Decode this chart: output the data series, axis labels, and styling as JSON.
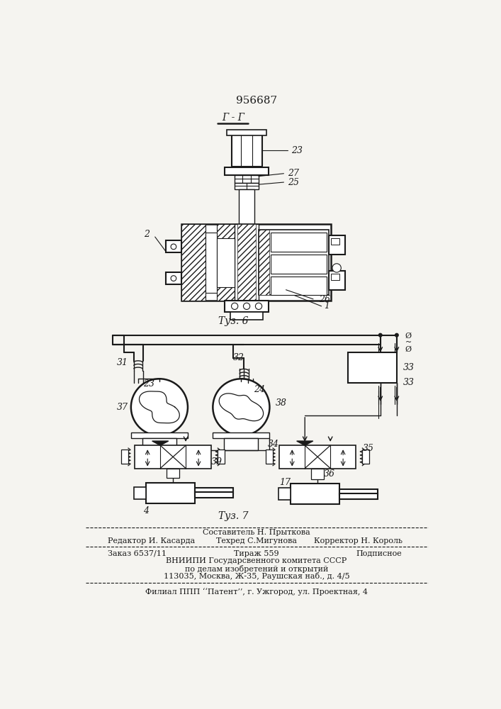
{
  "title": "956687",
  "fig6_label": "Τуз. 6",
  "fig7_label": "Τуз. 7",
  "section_label": "Г - Г",
  "bg_color": "#f5f4f0",
  "line_color": "#1a1a1a",
  "white": "#ffffff",
  "footer": {
    "line1_center": "Составитель Н. Прыткова",
    "line2_left": "Редактор И. Касарда",
    "line2_center": "Техред С.Мигунова",
    "line2_right": "Корректор Н. Король",
    "line3_left": "Заказ 6537/11",
    "line3_center": "Тираж 559",
    "line3_right": "Подписное",
    "line4": "ВНИИПИ Государсвенного комитета СССР",
    "line5": "по делам изобретений и открытий",
    "line6": "113035, Москва, Ж-35, Раушская наб., д. 4/5",
    "line7": "Филиал ППП ‘‘Патент’’, г. Ужгород, ул. Проектная, 4"
  }
}
